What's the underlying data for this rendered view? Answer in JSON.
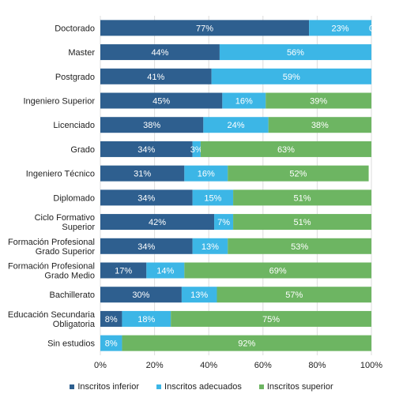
{
  "chart_data": {
    "type": "bar",
    "orientation": "horizontal",
    "stacked": true,
    "categories": [
      "Doctorado",
      "Master",
      "Postgrado",
      "Ingeniero Superior",
      "Licenciado",
      "Grado",
      "Ingeniero Técnico",
      "Diplomado",
      "Ciclo Formativo Superior",
      "Formación Profesional Grado Superior",
      "Formación Profesional Grado Medio",
      "Bachillerato",
      "Educación Secundaria Obligatoria",
      "Sin estudios"
    ],
    "category_lines": [
      [
        "Doctorado"
      ],
      [
        "Master"
      ],
      [
        "Postgrado"
      ],
      [
        "Ingeniero Superior"
      ],
      [
        "Licenciado"
      ],
      [
        "Grado"
      ],
      [
        "Ingeniero Técnico"
      ],
      [
        "Diplomado"
      ],
      [
        "Ciclo Formativo",
        "Superior"
      ],
      [
        "Formación Profesional",
        "Grado Superior"
      ],
      [
        "Formación Profesional",
        "Grado Medio"
      ],
      [
        "Bachillerato"
      ],
      [
        "Educación Secundaria",
        "Obligatoria"
      ],
      [
        "Sin estudios"
      ]
    ],
    "series": [
      {
        "name": "Inscritos inferior",
        "color": "#2e5f8f",
        "values": [
          77,
          44,
          41,
          45,
          38,
          34,
          31,
          34,
          42,
          34,
          17,
          30,
          8,
          0
        ],
        "labels": [
          "77%",
          "44%",
          "41%",
          "45%",
          "38%",
          "34%",
          "31%",
          "34%",
          "42%",
          "34%",
          "17%",
          "30%",
          "8%",
          ""
        ]
      },
      {
        "name": "Inscritos adecuados",
        "color": "#3cb6e6",
        "values": [
          23,
          56,
          59,
          16,
          24,
          3,
          16,
          15,
          7,
          13,
          14,
          13,
          18,
          8
        ],
        "labels": [
          "23%",
          "56%",
          "59%",
          "16%",
          "24%",
          "3%",
          "16%",
          "15%",
          "7%",
          "13%",
          "14%",
          "13%",
          "18%",
          "8%"
        ]
      },
      {
        "name": "Inscritos superior",
        "color": "#6db562",
        "values": [
          0,
          0,
          0,
          39,
          38,
          63,
          52,
          51,
          51,
          53,
          69,
          57,
          75,
          92
        ],
        "labels": [
          "0",
          "",
          "",
          "39%",
          "38%",
          "63%",
          "52%",
          "51%",
          "51%",
          "53%",
          "69%",
          "57%",
          "75%",
          "92%"
        ]
      }
    ],
    "xlim": [
      0,
      100
    ],
    "x_ticks": [
      "0%",
      "20%",
      "40%",
      "60%",
      "80%",
      "100%"
    ],
    "grid": true,
    "legend_position": "bottom",
    "title": "",
    "xlabel": "",
    "ylabel": ""
  }
}
